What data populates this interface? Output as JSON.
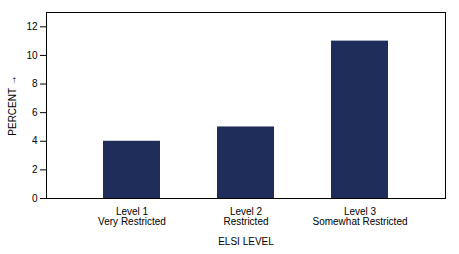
{
  "chart_data": {
    "type": "bar",
    "categories": [
      "Level 1\nVery Restricted",
      "Level 2\nRestricted",
      "Level 3\nSomewhat Restricted"
    ],
    "values": [
      4,
      5,
      11
    ],
    "color": "#1f2d5a",
    "xlabel": "ELSI LEVEL",
    "ylabel": "PERCENT",
    "ylim": [
      0,
      13
    ],
    "yticks": [
      0,
      2,
      4,
      6,
      8,
      10,
      12
    ]
  }
}
